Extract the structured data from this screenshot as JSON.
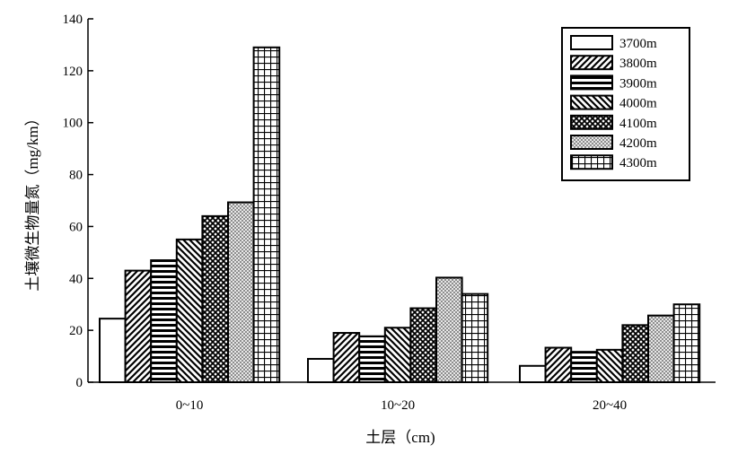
{
  "chart_data": {
    "type": "bar",
    "categories": [
      "0~10",
      "10~20",
      "20~40"
    ],
    "series": [
      {
        "name": "3700m",
        "pattern": "empty",
        "values": [
          24.5,
          9,
          6.3
        ]
      },
      {
        "name": "3800m",
        "pattern": "diag-up",
        "values": [
          43,
          19,
          13.3
        ]
      },
      {
        "name": "3900m",
        "pattern": "horizontal",
        "values": [
          47,
          17.7,
          11.7
        ]
      },
      {
        "name": "4000m",
        "pattern": "diag-down",
        "values": [
          55,
          21,
          12.5
        ]
      },
      {
        "name": "4100m",
        "pattern": "checker",
        "values": [
          64,
          28.5,
          22
        ]
      },
      {
        "name": "4200m",
        "pattern": "dots",
        "values": [
          69.3,
          40.3,
          25.7
        ]
      },
      {
        "name": "4300m",
        "pattern": "grid",
        "values": [
          129,
          34,
          30
        ]
      }
    ],
    "xlabel": "土层（cm)",
    "ylabel": "土壤微生物量氮（mg/km）",
    "ylim": [
      0,
      140
    ],
    "yticks": [
      0,
      20,
      40,
      60,
      80,
      100,
      120,
      140
    ],
    "legend_position": "top-right",
    "grid": false,
    "colors": {
      "ink": "#000000",
      "fill": "#ffffff"
    }
  }
}
